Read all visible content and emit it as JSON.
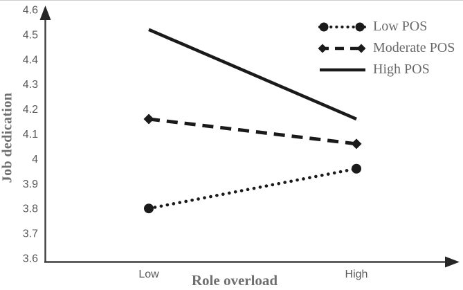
{
  "chart_data": {
    "type": "line",
    "title": "",
    "xlabel": "Role overload",
    "ylabel": "Job dedication",
    "categories": [
      "Low",
      "High"
    ],
    "yticks": [
      "4.6",
      "4.5",
      "4.4",
      "4.3",
      "4.2",
      "4.1",
      "4",
      "3.9",
      "3.8",
      "3.7",
      "3.6"
    ],
    "ylim": [
      3.6,
      4.6
    ],
    "grid": false,
    "legend_position": "top-right",
    "series": [
      {
        "name": "Low POS",
        "values": [
          3.8,
          3.96
        ],
        "line": "dotted",
        "marker": "circle",
        "color": "#1a1a1a"
      },
      {
        "name": "Moderate POS",
        "values": [
          4.16,
          4.06
        ],
        "line": "dashed",
        "marker": "diamond",
        "color": "#1a1a1a"
      },
      {
        "name": "High POS",
        "values": [
          4.52,
          4.16
        ],
        "line": "solid",
        "marker": "none",
        "color": "#1a1a1a"
      }
    ]
  },
  "colors": {
    "series": "#1a1a1a",
    "axis": "#3d3d3d",
    "arrow": "#262626",
    "tick_text": "#595959",
    "title_text": "#6f6f6f",
    "legend_text": "#696969"
  }
}
